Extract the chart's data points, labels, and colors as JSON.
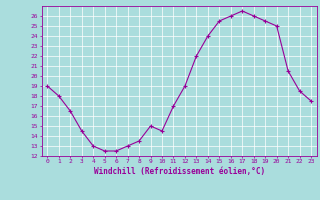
{
  "x_values": [
    0,
    1,
    2,
    3,
    4,
    5,
    6,
    7,
    8,
    9,
    10,
    11,
    12,
    13,
    14,
    15,
    16,
    17,
    18,
    19,
    20,
    21,
    22,
    23
  ],
  "y_values": [
    19,
    18,
    16.5,
    14.5,
    13,
    12.5,
    12.5,
    13,
    13.5,
    15,
    14.5,
    17,
    19,
    22,
    24,
    25.5,
    26,
    26.5,
    26,
    25.5,
    25,
    20.5,
    18.5,
    17.5
  ],
  "xlabel": "Windchill (Refroidissement éolien,°C)",
  "ylim": [
    12,
    27
  ],
  "xlim": [
    -0.5,
    23.5
  ],
  "yticks": [
    12,
    13,
    14,
    15,
    16,
    17,
    18,
    19,
    20,
    21,
    22,
    23,
    24,
    25,
    26
  ],
  "xticks": [
    0,
    1,
    2,
    3,
    4,
    5,
    6,
    7,
    8,
    9,
    10,
    11,
    12,
    13,
    14,
    15,
    16,
    17,
    18,
    19,
    20,
    21,
    22,
    23
  ],
  "line_color": "#990099",
  "marker": "+",
  "bg_color": "#aadddd",
  "grid_color": "#bbdddd",
  "label_color": "#990099",
  "tick_color": "#990099",
  "spine_color": "#990099",
  "xlabel_fontsize": 5.5,
  "tick_fontsize": 4.5,
  "marker_size": 3,
  "linewidth": 0.8,
  "marker_linewidth": 0.8
}
